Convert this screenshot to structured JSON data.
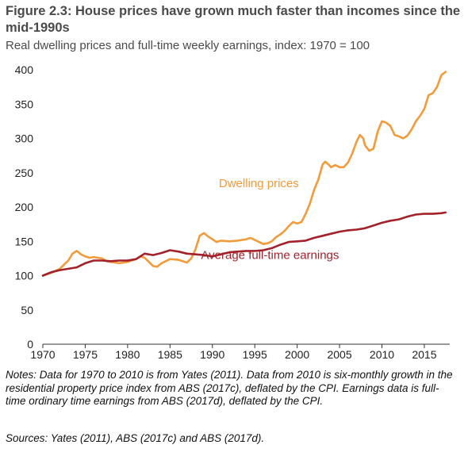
{
  "chart_data": {
    "type": "line",
    "title": "Figure 2.3: House prices have grown much faster than incomes since the mid-1990s",
    "subtitle": "Real dwelling prices and full-time weekly earnings, index: 1970 = 100",
    "xlabel": "",
    "ylabel": "",
    "xlim": [
      1970,
      2018
    ],
    "ylim": [
      0,
      400
    ],
    "x_ticks": [
      1970,
      1975,
      1980,
      1985,
      1990,
      1995,
      2000,
      2005,
      2010,
      2015
    ],
    "y_ticks": [
      0,
      50,
      100,
      150,
      200,
      250,
      300,
      350,
      400
    ],
    "grid": false,
    "legend": "none (series labelled inline)",
    "series": [
      {
        "name": "Dwelling prices",
        "color": "#f39a3a",
        "points": [
          [
            1970,
            100
          ],
          [
            1971,
            104
          ],
          [
            1972,
            110
          ],
          [
            1972.5,
            116
          ],
          [
            1973,
            122
          ],
          [
            1973.5,
            132
          ],
          [
            1974,
            136
          ],
          [
            1974.5,
            131
          ],
          [
            1975,
            128
          ],
          [
            1975.5,
            126
          ],
          [
            1976,
            127
          ],
          [
            1977,
            125
          ],
          [
            1977.5,
            121
          ],
          [
            1978,
            120
          ],
          [
            1979,
            118
          ],
          [
            1980,
            120
          ],
          [
            1981,
            124
          ],
          [
            1981.5,
            128
          ],
          [
            1982,
            126
          ],
          [
            1982.5,
            120
          ],
          [
            1983,
            114
          ],
          [
            1983.5,
            113
          ],
          [
            1984,
            118
          ],
          [
            1985,
            124
          ],
          [
            1986,
            123
          ],
          [
            1986.5,
            121
          ],
          [
            1987,
            119
          ],
          [
            1987.5,
            125
          ],
          [
            1988,
            138
          ],
          [
            1988.5,
            158
          ],
          [
            1989,
            162
          ],
          [
            1989.5,
            157
          ],
          [
            1990,
            153
          ],
          [
            1990.5,
            149
          ],
          [
            1991,
            151
          ],
          [
            1992,
            150
          ],
          [
            1993,
            151
          ],
          [
            1994,
            153
          ],
          [
            1994.5,
            155
          ],
          [
            1995,
            152
          ],
          [
            1995.5,
            149
          ],
          [
            1996,
            146
          ],
          [
            1996.5,
            147
          ],
          [
            1997,
            150
          ],
          [
            1997.5,
            156
          ],
          [
            1998,
            160
          ],
          [
            1998.5,
            165
          ],
          [
            1999,
            172
          ],
          [
            1999.5,
            178
          ],
          [
            2000,
            176
          ],
          [
            2000.5,
            178
          ],
          [
            2001,
            190
          ],
          [
            2001.5,
            205
          ],
          [
            2002,
            225
          ],
          [
            2002.5,
            240
          ],
          [
            2003,
            262
          ],
          [
            2003.3,
            266
          ],
          [
            2003.7,
            262
          ],
          [
            2004,
            258
          ],
          [
            2004.5,
            261
          ],
          [
            2005,
            258
          ],
          [
            2005.5,
            258
          ],
          [
            2006,
            265
          ],
          [
            2006.5,
            278
          ],
          [
            2007,
            295
          ],
          [
            2007.4,
            305
          ],
          [
            2007.8,
            300
          ],
          [
            2008,
            290
          ],
          [
            2008.5,
            282
          ],
          [
            2009,
            285
          ],
          [
            2009.5,
            310
          ],
          [
            2010,
            325
          ],
          [
            2010.5,
            323
          ],
          [
            2011,
            318
          ],
          [
            2011.5,
            305
          ],
          [
            2012,
            303
          ],
          [
            2012.5,
            300
          ],
          [
            2013,
            304
          ],
          [
            2013.5,
            313
          ],
          [
            2014,
            325
          ],
          [
            2014.5,
            333
          ],
          [
            2015,
            343
          ],
          [
            2015.5,
            363
          ],
          [
            2016,
            366
          ],
          [
            2016.5,
            375
          ],
          [
            2017,
            392
          ],
          [
            2017.5,
            397
          ]
        ]
      },
      {
        "name": "Average full-time earnings",
        "color": "#a3212a",
        "points": [
          [
            1970,
            100
          ],
          [
            1971,
            105
          ],
          [
            1972,
            108
          ],
          [
            1973,
            110
          ],
          [
            1974,
            112
          ],
          [
            1975,
            118
          ],
          [
            1976,
            122
          ],
          [
            1977,
            122
          ],
          [
            1978,
            121
          ],
          [
            1979,
            122
          ],
          [
            1980,
            122
          ],
          [
            1981,
            124
          ],
          [
            1982,
            132
          ],
          [
            1983,
            130
          ],
          [
            1984,
            133
          ],
          [
            1985,
            137
          ],
          [
            1986,
            135
          ],
          [
            1987,
            132
          ],
          [
            1988,
            131
          ],
          [
            1989,
            130
          ],
          [
            1990,
            128
          ],
          [
            1991,
            131
          ],
          [
            1992,
            134
          ],
          [
            1993,
            135
          ],
          [
            1994,
            136
          ],
          [
            1995,
            136
          ],
          [
            1996,
            137
          ],
          [
            1997,
            140
          ],
          [
            1998,
            145
          ],
          [
            1999,
            149
          ],
          [
            2000,
            150
          ],
          [
            2001,
            151
          ],
          [
            2002,
            155
          ],
          [
            2003,
            158
          ],
          [
            2004,
            161
          ],
          [
            2005,
            164
          ],
          [
            2006,
            166
          ],
          [
            2007,
            167
          ],
          [
            2008,
            169
          ],
          [
            2009,
            173
          ],
          [
            2010,
            177
          ],
          [
            2011,
            180
          ],
          [
            2012,
            182
          ],
          [
            2013,
            186
          ],
          [
            2014,
            189
          ],
          [
            2015,
            190
          ],
          [
            2016,
            190
          ],
          [
            2017,
            191
          ],
          [
            2017.5,
            192
          ]
        ]
      }
    ],
    "annotations": [
      {
        "text": "Dwelling prices",
        "series": 0
      },
      {
        "text": "Average full-time earnings",
        "series": 1
      }
    ]
  },
  "notes": "Notes: Data for 1970 to 2010 is from Yates (2011). Data from 2010 is six-monthly growth in the residential property price index from ABS (2017c), deflated by the CPI. Earnings data is full-time ordinary time earnings from ABS (2017d), deflated by the CPI.",
  "sources": "Sources: Yates (2011), ABS (2017c) and ABS (2017d)."
}
